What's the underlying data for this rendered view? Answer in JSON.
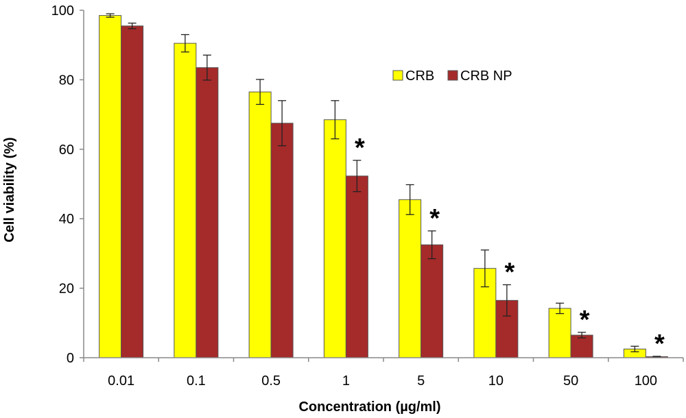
{
  "chart_data": {
    "type": "bar",
    "xlabel": "Concentration (µg/ml)",
    "ylabel": "Cell viability (%)",
    "categories": [
      "0.01",
      "0.1",
      "0.5",
      "1",
      "5",
      "10",
      "50",
      "100"
    ],
    "ylim": [
      0,
      100
    ],
    "yticks": [
      "0",
      "20",
      "40",
      "60",
      "80",
      "100"
    ],
    "grid": false,
    "legend_position": "top-right",
    "series": [
      {
        "name": "CRB",
        "color": "#ffff00",
        "values": [
          98.5,
          90.5,
          76.5,
          68.5,
          45.5,
          25.7,
          14.2,
          2.5
        ],
        "errors": [
          0.5,
          2.5,
          3.6,
          5.5,
          4.3,
          5.3,
          1.5,
          0.8
        ]
      },
      {
        "name": "CRB NP",
        "color": "#a52a2a",
        "values": [
          95.5,
          83.5,
          67.5,
          52.3,
          32.5,
          16.5,
          6.5,
          0.3
        ],
        "errors": [
          0.8,
          3.6,
          6.5,
          4.5,
          4.0,
          4.5,
          0.8,
          0.1
        ]
      }
    ],
    "annotations": [
      "",
      "",
      "",
      "*",
      "*",
      "*",
      "*",
      "*"
    ]
  }
}
